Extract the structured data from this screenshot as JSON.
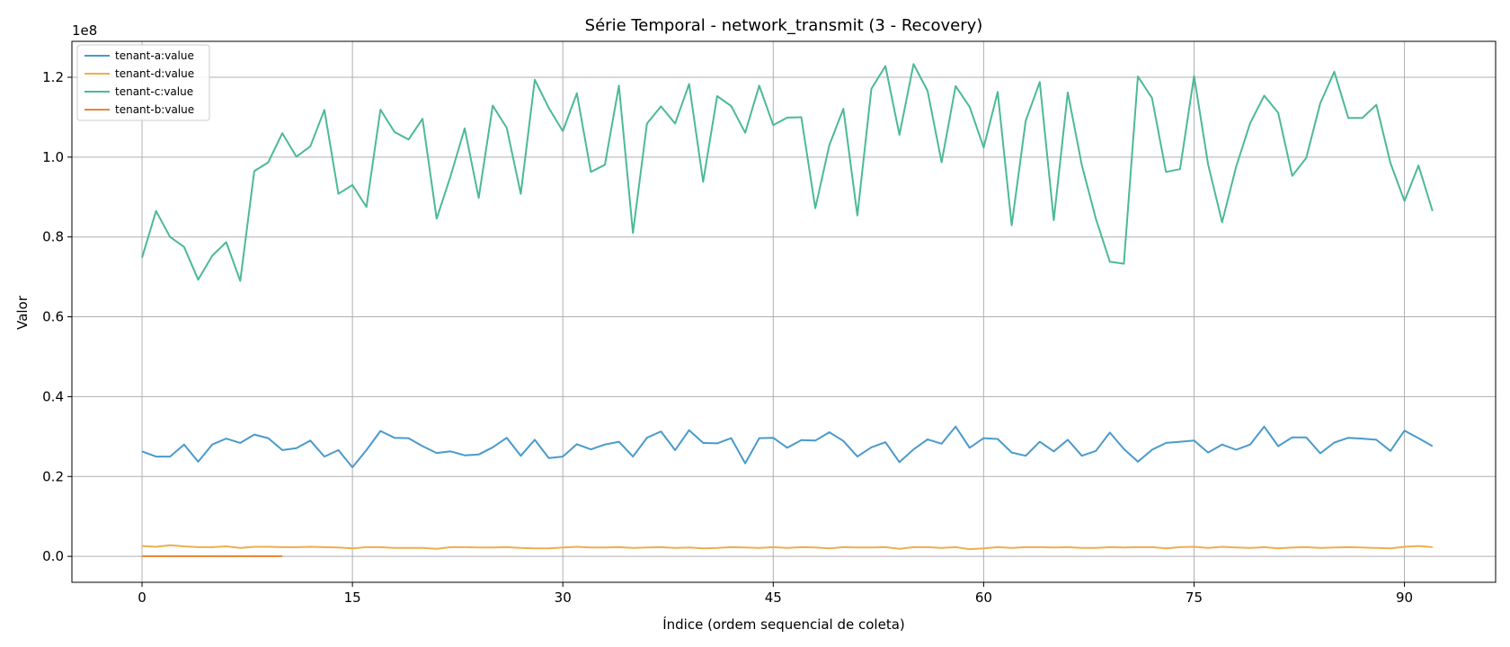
{
  "chart_data": {
    "type": "line",
    "title": "Série Temporal - network_transmit (3 - Recovery)",
    "xlabel": "Índice (ordem sequencial de coleta)",
    "ylabel": "Valor",
    "y_offset_text": "1e8",
    "y_scale_factor": 100000000,
    "xlim": [
      -5,
      96.5
    ],
    "ylim": [
      -6500000,
      129000000
    ],
    "x_ticks": [
      0,
      15,
      30,
      45,
      60,
      75,
      90
    ],
    "x_tick_labels": [
      "0",
      "15",
      "30",
      "45",
      "60",
      "75",
      "90"
    ],
    "y_ticks": [
      0,
      20000000,
      40000000,
      60000000,
      80000000,
      100000000,
      120000000
    ],
    "y_tick_labels": [
      "0.0",
      "0.2",
      "0.4",
      "0.6",
      "0.8",
      "1.0",
      "1.2"
    ],
    "grid": true,
    "legend_position": "top-left",
    "series": [
      {
        "name": "tenant-a:value",
        "color": "#4a9acb",
        "x_start": 0,
        "values": [
          26300000,
          25000000,
          25000000,
          28000000,
          23700000,
          28000000,
          29500000,
          28400000,
          30500000,
          29600000,
          26600000,
          27100000,
          29000000,
          25000000,
          26600000,
          22300000,
          26600000,
          31400000,
          29700000,
          29600000,
          27600000,
          25900000,
          26300000,
          25300000,
          25500000,
          27300000,
          29700000,
          25200000,
          29200000,
          24600000,
          25000000,
          28100000,
          26800000,
          28000000,
          28700000,
          25000000,
          29700000,
          31300000,
          26600000,
          31600000,
          28400000,
          28300000,
          29600000,
          23300000,
          29600000,
          29700000,
          27200000,
          29100000,
          29000000,
          31100000,
          28900000,
          25000000,
          27300000,
          28600000,
          23600000,
          26800000,
          29300000,
          28200000,
          32500000,
          27200000,
          29600000,
          29400000,
          26000000,
          25200000,
          28700000,
          26300000,
          29200000,
          25200000,
          26400000,
          31000000,
          26900000,
          23700000,
          26700000,
          28400000,
          28700000,
          29000000,
          26000000,
          28000000,
          26700000,
          28000000,
          32500000,
          27600000,
          29800000,
          29800000,
          25800000,
          28500000,
          29700000,
          29500000,
          29200000,
          26400000,
          31500000,
          29600000,
          27600000
        ]
      },
      {
        "name": "tenant-d:value",
        "color": "#eeae4e",
        "x_start": 0,
        "values": [
          2600000,
          2400000,
          2800000,
          2500000,
          2300000,
          2300000,
          2500000,
          2100000,
          2400000,
          2400000,
          2300000,
          2300000,
          2400000,
          2300000,
          2200000,
          2000000,
          2300000,
          2300000,
          2100000,
          2100000,
          2100000,
          1900000,
          2300000,
          2300000,
          2200000,
          2200000,
          2300000,
          2100000,
          2000000,
          2000000,
          2200000,
          2400000,
          2200000,
          2200000,
          2300000,
          2100000,
          2200000,
          2300000,
          2100000,
          2200000,
          2000000,
          2100000,
          2300000,
          2200000,
          2100000,
          2300000,
          2100000,
          2300000,
          2200000,
          2000000,
          2300000,
          2200000,
          2200000,
          2300000,
          1900000,
          2300000,
          2300000,
          2100000,
          2300000,
          1800000,
          2000000,
          2300000,
          2100000,
          2300000,
          2300000,
          2200000,
          2300000,
          2100000,
          2100000,
          2300000,
          2200000,
          2300000,
          2300000,
          2000000,
          2300000,
          2400000,
          2100000,
          2400000,
          2200000,
          2100000,
          2300000,
          2000000,
          2200000,
          2300000,
          2100000,
          2200000,
          2300000,
          2200000,
          2100000,
          2000000,
          2400000,
          2600000,
          2300000
        ]
      },
      {
        "name": "tenant-c:value",
        "color": "#4cba93",
        "x_start": 0,
        "values": [
          74800000,
          86500000,
          80000000,
          77500000,
          69300000,
          75300000,
          78700000,
          69000000,
          96500000,
          98700000,
          106000000,
          100100000,
          102700000,
          111800000,
          90800000,
          93000000,
          87500000,
          111900000,
          106300000,
          104400000,
          109600000,
          84600000,
          95300000,
          107200000,
          89800000,
          112900000,
          107300000,
          90800000,
          119400000,
          112300000,
          106500000,
          116000000,
          96300000,
          98100000,
          117900000,
          81000000,
          108400000,
          112700000,
          108400000,
          118300000,
          93800000,
          115300000,
          112800000,
          106100000,
          117900000,
          108000000,
          109900000,
          110000000,
          87200000,
          103000000,
          112100000,
          85400000,
          117100000,
          122800000,
          105600000,
          123300000,
          116600000,
          98700000,
          117800000,
          112600000,
          102400000,
          116300000,
          82900000,
          109100000,
          118800000,
          84200000,
          116200000,
          98000000,
          84600000,
          73800000,
          73300000,
          120200000,
          114800000,
          96300000,
          97000000,
          120300000,
          98200000,
          83700000,
          97600000,
          108500000,
          115400000,
          111100000,
          95300000,
          99800000,
          113500000,
          121400000,
          109800000,
          109800000,
          113100000,
          98500000,
          89000000,
          97900000,
          86500000
        ]
      },
      {
        "name": "tenant-b:value",
        "color": "#e8883a",
        "x_start": 0,
        "values": [
          30000,
          30000,
          30000,
          30000,
          30000,
          30000,
          30000,
          30000,
          30000,
          30000,
          30000
        ]
      }
    ]
  }
}
